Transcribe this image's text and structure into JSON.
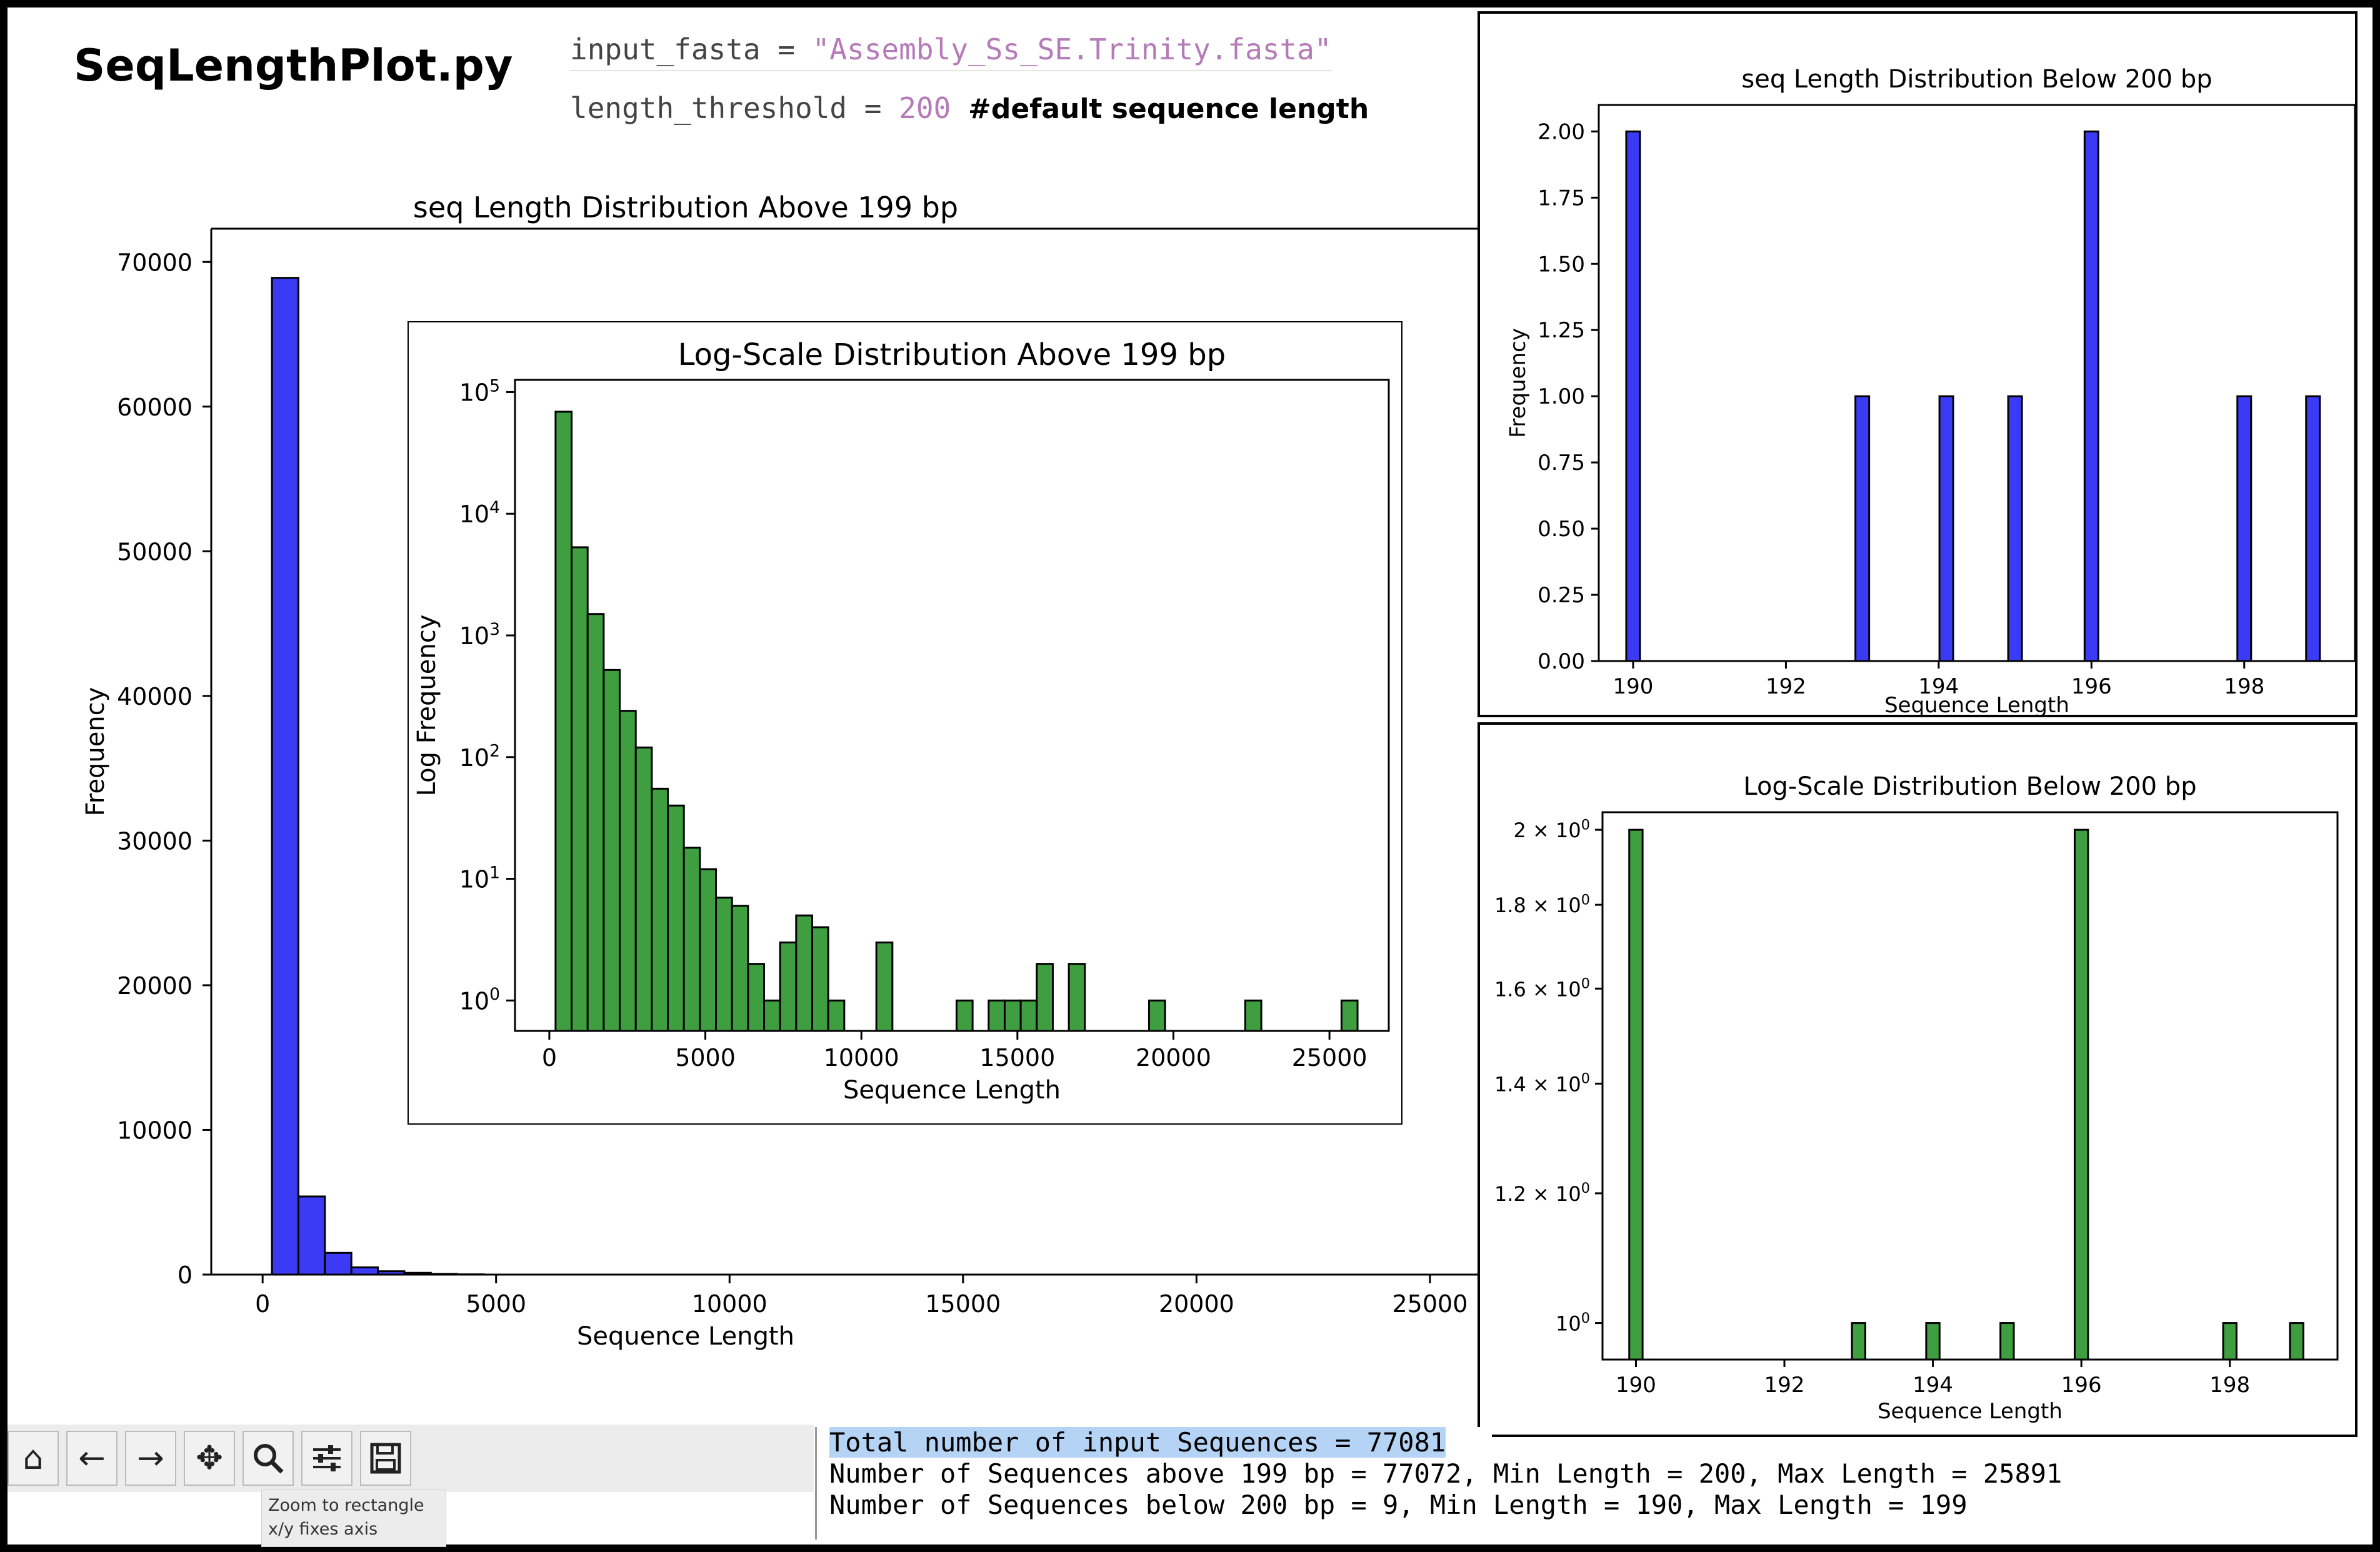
{
  "header": {
    "title": "SeqLengthPlot.py",
    "code_line1": {
      "var": "input_fasta",
      "op": " = ",
      "value": "\"Assembly_Ss_SE.Trinity.fasta\""
    },
    "code_line2": {
      "var": "length_threshold",
      "op": " = ",
      "value": "200",
      "comment": "#default sequence length"
    }
  },
  "toolbar": {
    "buttons": [
      "home-icon",
      "back-arrow-icon",
      "forward-arrow-icon",
      "pan-icon",
      "zoom-icon",
      "configure-icon",
      "save-icon"
    ],
    "tooltip_line1": "Zoom to rectangle",
    "tooltip_line2": "x/y fixes axis"
  },
  "console": {
    "line1": "Total number of input Sequences = 77081",
    "line2": "Number of Sequences above 199 bp = 77072, Min Length = 200, Max Length = 25891",
    "line3": "Number of Sequences below 200 bp = 9, Min Length = 190, Max Length = 199"
  },
  "colors": {
    "blue": "#3b3bf5",
    "green": "#3f9e3f"
  },
  "chart_data": [
    {
      "id": "main",
      "type": "bar",
      "title": "seq Length Distribution Above 199 bp",
      "xlabel": "Sequence Length",
      "ylabel": "Frequency",
      "xlim": [
        -1100,
        26500
      ],
      "ylim": [
        0,
        72300
      ],
      "xticks": [
        0,
        5000,
        10000,
        15000,
        20000,
        25000
      ],
      "yticks": [
        0,
        10000,
        20000,
        30000,
        40000,
        50000,
        60000,
        70000
      ],
      "bin_start": 200,
      "bin_width": 567,
      "values": [
        68900,
        5400,
        1500,
        500,
        230,
        120,
        45,
        15
      ]
    },
    {
      "id": "inset",
      "type": "bar",
      "title": "Log-Scale Distribution Above 199 bp",
      "xlabel": "Sequence Length",
      "ylabel": "Log Frequency",
      "scale": "log",
      "xlim": [
        -1100,
        26900
      ],
      "ylog_range": [
        -0.25,
        5.1
      ],
      "xticks": [
        0,
        5000,
        10000,
        15000,
        20000,
        25000
      ],
      "yticks": [
        "10^0",
        "10^1",
        "10^2",
        "10^3",
        "10^4",
        "10^5"
      ],
      "bin_start": 200,
      "bin_width": 514,
      "values": [
        68900,
        5300,
        1500,
        520,
        240,
        120,
        55,
        40,
        18,
        12,
        7,
        6,
        2,
        1,
        3,
        5,
        4,
        1,
        0,
        0,
        3,
        0,
        0,
        0,
        0,
        1,
        0,
        1,
        1,
        1,
        2,
        0,
        2,
        0,
        0,
        0,
        0,
        1,
        0,
        0,
        0,
        0,
        0,
        1,
        0,
        0,
        0,
        0,
        0,
        1
      ]
    },
    {
      "id": "below",
      "type": "bar",
      "title": "seq Length Distribution Below 200 bp",
      "xlabel": "Sequence Length",
      "ylabel": "Frequency",
      "xlim": [
        189.55,
        199.45
      ],
      "ylim": [
        0,
        2.1
      ],
      "xticks": [
        190,
        192,
        194,
        196,
        198
      ],
      "yticks": [
        "0.00",
        "0.25",
        "0.50",
        "0.75",
        "1.00",
        "1.25",
        "1.50",
        "1.75",
        "2.00"
      ],
      "bar_width": 0.18,
      "x": [
        190,
        193,
        194.1,
        195,
        196,
        198,
        198.9
      ],
      "values": [
        2,
        1,
        1,
        1,
        2,
        1,
        1
      ]
    },
    {
      "id": "below-log",
      "type": "bar",
      "title": "Log-Scale Distribution Below 200 bp",
      "xlabel": "Sequence Length",
      "scale": "log",
      "xlim": [
        189.55,
        199.45
      ],
      "ylim": [
        0.95,
        2.05
      ],
      "xticks": [
        190,
        192,
        194,
        196,
        198
      ],
      "yticks": [
        1.0,
        1.2,
        1.4,
        1.6,
        1.8,
        2.0
      ],
      "ytick_labels": [
        "10^0",
        "1.2 × 10^0",
        "1.4 × 10^0",
        "1.6 × 10^0",
        "1.8 × 10^0",
        "2 × 10^0"
      ],
      "bar_width": 0.18,
      "x": [
        190,
        193,
        194,
        195,
        196,
        198,
        198.9
      ],
      "values": [
        2,
        1,
        1,
        1,
        2,
        1,
        1
      ]
    }
  ]
}
